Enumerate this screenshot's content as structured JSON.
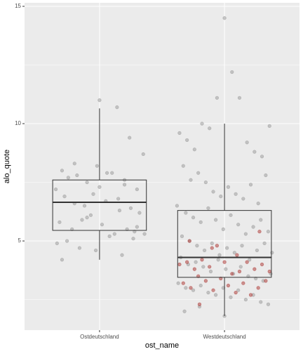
{
  "chart_data": {
    "type": "boxplot",
    "x_label": "ost_name",
    "y_label": "alo_quote",
    "categories": [
      "Ostdeutschland",
      "Westdeutschland"
    ],
    "xlim": [
      0.4,
      2.6
    ],
    "ylim": [
      1.2,
      15.15
    ],
    "yticks": [
      5,
      10,
      15
    ],
    "y_minor_ticks": [
      2.5,
      7.5,
      12.5
    ],
    "grid": true,
    "boxes": [
      {
        "lower_whisker": 4.2,
        "q1": 5.45,
        "median": 6.65,
        "q3": 7.6,
        "upper_whisker": 10.65
      },
      {
        "lower_whisker": 1.8,
        "q1": 3.45,
        "median": 4.3,
        "q3": 6.3,
        "upper_whisker": 10.0
      }
    ],
    "series": [
      {
        "color": "#9e9e9e",
        "x": [
          0.7,
          0.75,
          0.82,
          0.9,
          1.0,
          1.1,
          1.2,
          1.3,
          1.35,
          0.65,
          0.72,
          0.8,
          0.88,
          0.95,
          1.05,
          1.15,
          1.25,
          1.32,
          0.68,
          0.78,
          0.86,
          0.93,
          1.02,
          1.12,
          1.22,
          1.28,
          0.74,
          0.84,
          0.97,
          1.08,
          1.18,
          1.27,
          1.36,
          0.66,
          0.9,
          1.0,
          1.14,
          1.24,
          0.8,
          0.98,
          1.06,
          1.2,
          0.7,
          1.16,
          1.3
        ],
        "values": [
          8.0,
          7.7,
          7.8,
          7.5,
          7.3,
          7.9,
          7.4,
          7.2,
          8.7,
          7.2,
          6.9,
          6.6,
          6.5,
          7.0,
          6.7,
          6.8,
          6.4,
          6.2,
          5.8,
          5.5,
          5.9,
          6.1,
          5.7,
          5.3,
          5.5,
          5.4,
          5.0,
          4.7,
          4.6,
          5.2,
          4.4,
          5.1,
          5.3,
          4.9,
          6.0,
          11.0,
          10.7,
          9.4,
          8.3,
          8.2,
          7.9,
          7.6,
          4.2,
          6.3,
          5.6
        ]
      },
      {
        "color": "#9e9e9e",
        "x": [
          1.64,
          1.7,
          1.76,
          1.82,
          1.88,
          1.94,
          2.0,
          2.06,
          2.12,
          2.18,
          2.24,
          2.3,
          2.36,
          1.67,
          1.73,
          1.79,
          1.85,
          1.91,
          1.97,
          2.03,
          2.09,
          2.15,
          2.21,
          2.27,
          2.33,
          1.62,
          1.69,
          1.75,
          1.81,
          1.87,
          1.93,
          1.99,
          2.05,
          2.11,
          2.17,
          2.23,
          2.29,
          2.35,
          1.66,
          1.72,
          1.78,
          1.84,
          1.9,
          1.96,
          2.02,
          2.08,
          2.14,
          2.2,
          2.26,
          2.32,
          2.38,
          1.65,
          1.71,
          1.77,
          1.83,
          1.89,
          1.95,
          2.01,
          2.07,
          2.13,
          2.19,
          2.25,
          2.31,
          2.37,
          1.63,
          1.69,
          1.75,
          1.81,
          1.87,
          1.93,
          1.99,
          2.05,
          2.11,
          2.17,
          2.23,
          2.29,
          2.35,
          1.68,
          1.8,
          2.0
        ],
        "values": [
          9.6,
          9.3,
          8.9,
          10.0,
          9.8,
          11.1,
          14.5,
          12.2,
          11.1,
          9.2,
          8.8,
          8.6,
          9.9,
          8.2,
          7.6,
          7.9,
          7.5,
          7.1,
          6.9,
          7.3,
          7.0,
          6.8,
          7.4,
          6.6,
          7.8,
          6.5,
          6.2,
          6.0,
          5.8,
          6.4,
          5.9,
          5.5,
          6.1,
          5.7,
          5.3,
          5.6,
          5.9,
          5.4,
          5.2,
          5.0,
          4.8,
          4.6,
          4.9,
          4.4,
          4.7,
          4.5,
          4.8,
          4.2,
          4.6,
          4.9,
          4.5,
          4.3,
          4.0,
          4.1,
          3.9,
          3.7,
          4.2,
          3.8,
          3.6,
          3.9,
          3.5,
          3.4,
          3.3,
          3.6,
          3.2,
          3.0,
          2.9,
          3.1,
          2.8,
          2.7,
          3.0,
          2.6,
          2.9,
          2.5,
          2.7,
          2.4,
          2.3,
          2.0,
          2.2,
          1.8
        ]
      },
      {
        "color": "#b0413e",
        "x": [
          1.64,
          1.7,
          1.76,
          1.82,
          1.88,
          1.94,
          2.0,
          2.06,
          2.12,
          2.18,
          2.24,
          2.3,
          2.36,
          1.67,
          1.73,
          1.79,
          1.85,
          1.91,
          1.97,
          2.03,
          2.09,
          2.15,
          2.21,
          2.27,
          2.33,
          1.72,
          1.9,
          2.1,
          2.28,
          1.8
        ],
        "values": [
          4.0,
          4.1,
          3.8,
          4.2,
          3.9,
          4.8,
          4.1,
          3.6,
          3.7,
          4.1,
          3.8,
          4.0,
          3.7,
          3.2,
          3.0,
          3.5,
          3.3,
          2.9,
          3.4,
          3.1,
          2.8,
          3.2,
          2.7,
          3.0,
          3.3,
          5.0,
          4.7,
          4.4,
          5.4,
          2.3
        ]
      }
    ]
  }
}
